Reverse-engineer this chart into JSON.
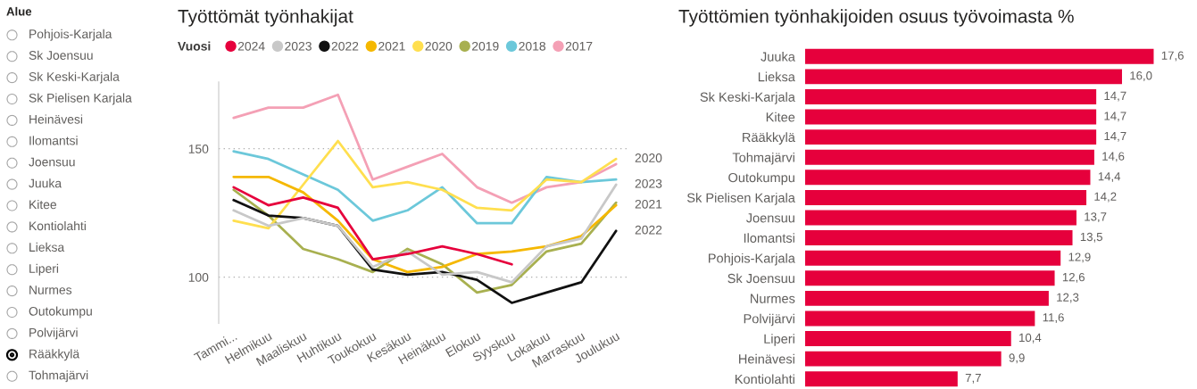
{
  "chart_data": [
    {
      "type": "other",
      "title": "Alue",
      "categories": [
        "Pohjois-Karjala",
        "Sk Joensuu",
        "Sk Keski-Karjala",
        "Sk Pielisen Karjala",
        "Heinävesi",
        "Ilomantsi",
        "Joensuu",
        "Juuka",
        "Kitee",
        "Kontiolahti",
        "Lieksa",
        "Liperi",
        "Nurmes",
        "Outokumpu",
        "Polvijärvi",
        "Rääkkylä",
        "Tohmajärvi"
      ],
      "colors": [
        null,
        null,
        null,
        null,
        null,
        null,
        null,
        null,
        null,
        null,
        null,
        null,
        null,
        null,
        null,
        "#000000",
        null
      ]
    },
    {
      "type": "line",
      "title": "Työttömät työnhakijat",
      "legend_title": "Vuosi",
      "legend": "top left",
      "grid": "y",
      "ylim": [
        82,
        176
      ],
      "yticks": [
        100,
        150
      ],
      "categories": [
        "Tammi...",
        "Helmikuu",
        "Maaliskuu",
        "Huhtikuu",
        "Toukokuu",
        "Kesäkuu",
        "Heinäkuu",
        "Elokuu",
        "Syyskuu",
        "Lokakuu",
        "Marraskuu",
        "Joulukuu"
      ],
      "series": [
        {
          "name": "2024",
          "color": "#e6003c",
          "values": [
            135,
            128,
            131,
            127,
            107,
            109,
            112,
            109,
            105,
            null,
            null,
            null
          ]
        },
        {
          "name": "2023",
          "color": "#c8c8c8",
          "values": [
            126,
            120,
            123,
            120,
            104,
            110,
            101,
            102,
            98,
            112,
            115,
            136
          ]
        },
        {
          "name": "2022",
          "color": "#111111",
          "values": [
            130,
            124,
            123,
            120,
            103,
            101,
            102,
            99,
            90,
            94,
            98,
            118
          ]
        },
        {
          "name": "2021",
          "color": "#f5b800",
          "values": [
            139,
            139,
            133,
            122,
            107,
            102,
            104,
            109,
            110,
            112,
            116,
            128
          ]
        },
        {
          "name": "2020",
          "color": "#ffdf4f",
          "values": [
            122,
            119,
            136,
            153,
            135,
            137,
            134,
            127,
            126,
            138,
            137,
            146
          ]
        },
        {
          "name": "2019",
          "color": "#a8b050",
          "values": [
            134,
            124,
            111,
            107,
            102,
            111,
            105,
            94,
            97,
            110,
            113,
            129
          ]
        },
        {
          "name": "2018",
          "color": "#6cc8da",
          "values": [
            149,
            146,
            140,
            134,
            122,
            126,
            135,
            121,
            121,
            139,
            137,
            138
          ]
        },
        {
          "name": "2017",
          "color": "#f4a0b5",
          "values": [
            162,
            166,
            166,
            171,
            138,
            143,
            148,
            135,
            129,
            135,
            137,
            144
          ]
        }
      ],
      "annotations": [
        {
          "text": "2020",
          "x": "Joulukuu",
          "y": 146
        },
        {
          "text": "2023",
          "x": "Joulukuu",
          "y": 136
        },
        {
          "text": "2021",
          "x": "Joulukuu",
          "y": 128
        },
        {
          "text": "2022",
          "x": "Joulukuu",
          "y": 118
        }
      ]
    },
    {
      "type": "bar",
      "orientation": "horizontal",
      "title": "Työttömien työnhakijoiden osuus työvoimasta %",
      "color": "#e6003c",
      "tick_labels": "y",
      "categories": [
        "Juuka",
        "Lieksa",
        "Sk Keski-Karjala",
        "Kitee",
        "Rääkkylä",
        "Tohmajärvi",
        "Outokumpu",
        "Sk Pielisen Karjala",
        "Joensuu",
        "Ilomantsi",
        "Pohjois-Karjala",
        "Sk Joensuu",
        "Nurmes",
        "Polvijärvi",
        "Liperi",
        "Heinävesi",
        "Kontiolahti"
      ],
      "values": [
        17.6,
        16.0,
        14.7,
        14.7,
        14.7,
        14.6,
        14.4,
        14.2,
        13.7,
        13.5,
        12.9,
        12.6,
        12.3,
        11.6,
        10.4,
        9.9,
        7.7
      ],
      "value_labels": [
        "17,6",
        "16,0",
        "14,7",
        "14,7",
        "14,7",
        "14,6",
        "14,4",
        "14,2",
        "13,7",
        "13,5",
        "12,9",
        "12,6",
        "12,3",
        "11,6",
        "10,4",
        "9,9",
        "7,7"
      ]
    }
  ]
}
